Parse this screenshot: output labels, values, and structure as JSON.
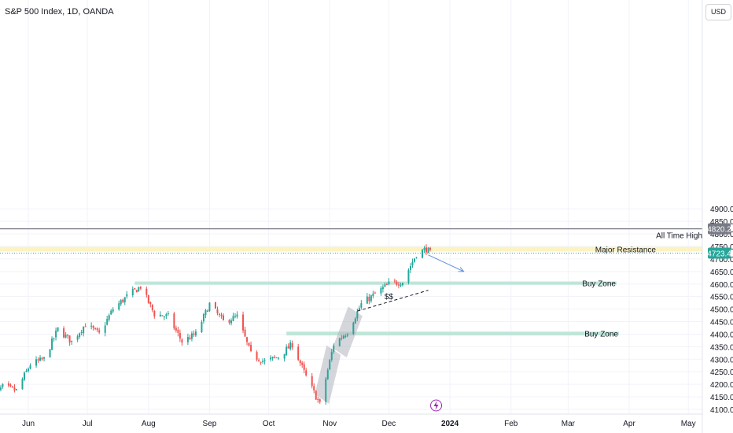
{
  "header": {
    "title": "S&P 500 Index, 1D, OANDA",
    "currency": "USD"
  },
  "icons": {
    "events": "lightning-icon"
  },
  "colors": {
    "up": "#26a69a",
    "down": "#ef5350",
    "zone": "#bfe5d9",
    "resistance": "#fdf3c2",
    "ath_line": "#787b86",
    "ath_badge": "#787b86",
    "price_badge": "#26a69a",
    "projection": "#5b8fd9",
    "shade": "#b2b5be"
  },
  "chart_data": {
    "type": "candlestick",
    "title": "S&P 500 Index, 1D, OANDA",
    "ylim": [
      4095,
      5000
    ],
    "y_ticks": [
      4100,
      4150,
      4200,
      4250,
      4300,
      4350,
      4400,
      4450,
      4500,
      4550,
      4600,
      4650,
      4700,
      4750,
      4800,
      4850,
      4900
    ],
    "y_tick_labels": [
      "4100.0",
      "4150.0",
      "4200.0",
      "4250.0",
      "4300.0",
      "4350.0",
      "4400.0",
      "4450.0",
      "4500.0",
      "4550.0",
      "4600.0",
      "4650.0",
      "4700.0",
      "4750.0",
      "4800.0",
      "4850.0",
      "4900.0"
    ],
    "x_ticks": [
      "Jun",
      "Jul",
      "Aug",
      "Sep",
      "Oct",
      "Nov",
      "Dec",
      "2024",
      "Feb",
      "Mar",
      "Apr",
      "May"
    ],
    "x_tick_dates": [
      "2023-06-01",
      "2023-07-01",
      "2023-08-01",
      "2023-09-01",
      "2023-10-01",
      "2023-11-01",
      "2023-12-01",
      "2024-01-01",
      "2024-02-01",
      "2024-03-01",
      "2024-04-01",
      "2024-05-01"
    ],
    "close_path": [
      [
        "2023-05-12",
        4130
      ],
      [
        "2023-05-19",
        4190
      ],
      [
        "2023-05-26",
        4175
      ],
      [
        "2023-06-02",
        4280
      ],
      [
        "2023-06-09",
        4300
      ],
      [
        "2023-06-16",
        4420
      ],
      [
        "2023-06-23",
        4370
      ],
      [
        "2023-06-30",
        4440
      ],
      [
        "2023-07-07",
        4400
      ],
      [
        "2023-07-14",
        4500
      ],
      [
        "2023-07-21",
        4550
      ],
      [
        "2023-07-28",
        4590
      ],
      [
        "2023-08-04",
        4480
      ],
      [
        "2023-08-11",
        4470
      ],
      [
        "2023-08-18",
        4370
      ],
      [
        "2023-08-25",
        4400
      ],
      [
        "2023-09-01",
        4520
      ],
      [
        "2023-09-08",
        4450
      ],
      [
        "2023-09-15",
        4470
      ],
      [
        "2023-09-22",
        4320
      ],
      [
        "2023-09-29",
        4290
      ],
      [
        "2023-10-06",
        4310
      ],
      [
        "2023-10-13",
        4360
      ],
      [
        "2023-10-20",
        4230
      ],
      [
        "2023-10-27",
        4120
      ],
      [
        "2023-11-03",
        4360
      ],
      [
        "2023-11-10",
        4410
      ],
      [
        "2023-11-17",
        4520
      ],
      [
        "2023-11-24",
        4560
      ],
      [
        "2023-12-01",
        4600
      ],
      [
        "2023-12-08",
        4610
      ],
      [
        "2023-12-15",
        4720
      ],
      [
        "2023-12-20",
        4740
      ],
      [
        "2023-12-22",
        4723.4
      ]
    ],
    "last_price": "4723.4",
    "all_time_high": "4820.2",
    "levels": [
      {
        "label": "All Time High",
        "value": 4820.2
      },
      {
        "label": "Major Resistance",
        "from": 4730,
        "to": 4748
      },
      {
        "label": "Buy Zone",
        "from": 4597,
        "to": 4610
      },
      {
        "label": "Buy Zone",
        "from": 4395,
        "to": 4410
      }
    ],
    "annotations": [
      {
        "text": "$$",
        "date": "2023-12-01",
        "value": 4540
      }
    ],
    "projection": {
      "from": [
        "2023-12-21",
        4716
      ],
      "to": [
        "2024-01-08",
        4650
      ]
    },
    "trendline": {
      "from": [
        "2023-11-15",
        4492
      ],
      "to": [
        "2023-12-21",
        4575
      ]
    },
    "shaded_legs": [
      {
        "from": [
          "2023-10-28",
          4160
        ],
        "to": [
          "2023-11-03",
          4355
        ]
      },
      {
        "from": [
          "2023-11-06",
          4345
        ],
        "to": [
          "2023-11-14",
          4510
        ]
      }
    ]
  }
}
